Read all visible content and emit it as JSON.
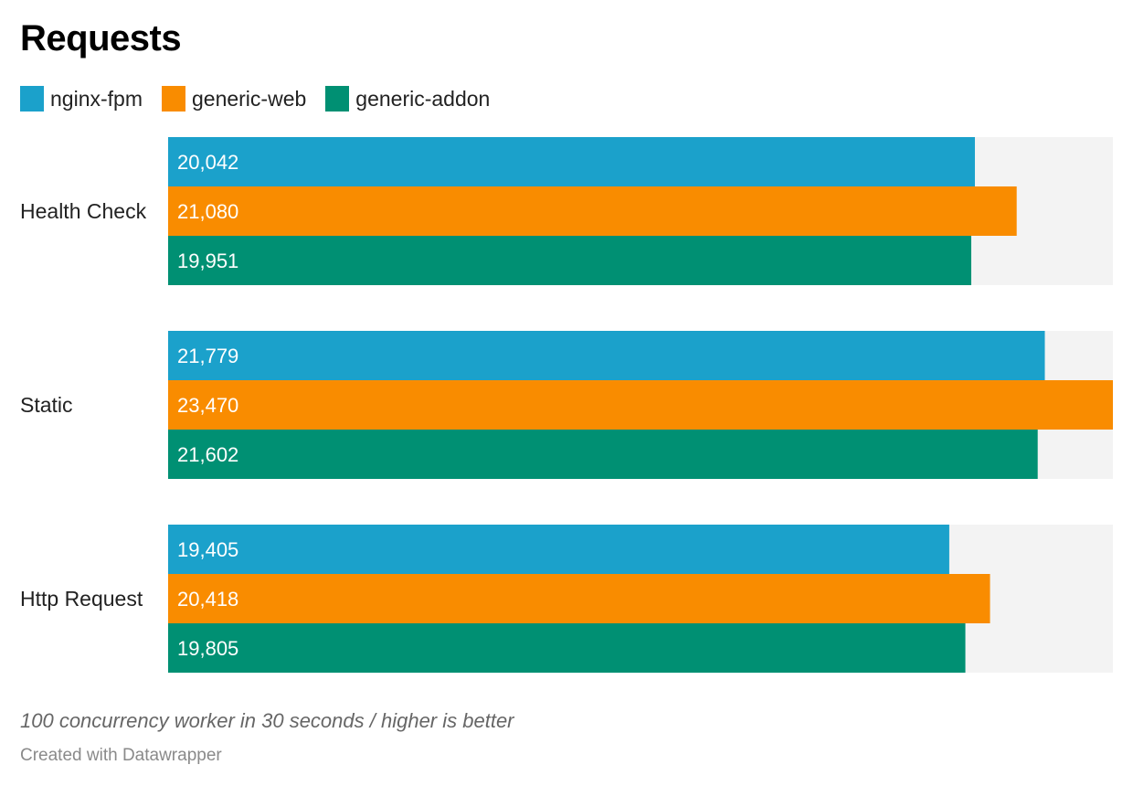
{
  "chart_data": {
    "type": "bar",
    "orientation": "horizontal",
    "title": "Requests",
    "categories": [
      "Health Check",
      "Static",
      "Http Request"
    ],
    "series": [
      {
        "name": "nginx-fpm",
        "color": "#1ba1cb",
        "values": [
          20042,
          21779,
          19405
        ],
        "labels": [
          "20,042",
          "21,779",
          "19,405"
        ]
      },
      {
        "name": "generic-web",
        "color": "#f98c00",
        "values": [
          21080,
          23470,
          20418
        ],
        "labels": [
          "21,080",
          "23,470",
          "20,418"
        ]
      },
      {
        "name": "generic-addon",
        "color": "#009073",
        "values": [
          19951,
          21602,
          19805
        ],
        "labels": [
          "19,951",
          "21,602",
          "19,805"
        ]
      }
    ],
    "xlim": [
      0,
      23470
    ],
    "legend_position": "top-left",
    "grid": false,
    "background_track_color": "#f3f3f3",
    "note": "100 concurrency worker in 30 seconds / higher is better",
    "credit": "Created with Datawrapper"
  }
}
